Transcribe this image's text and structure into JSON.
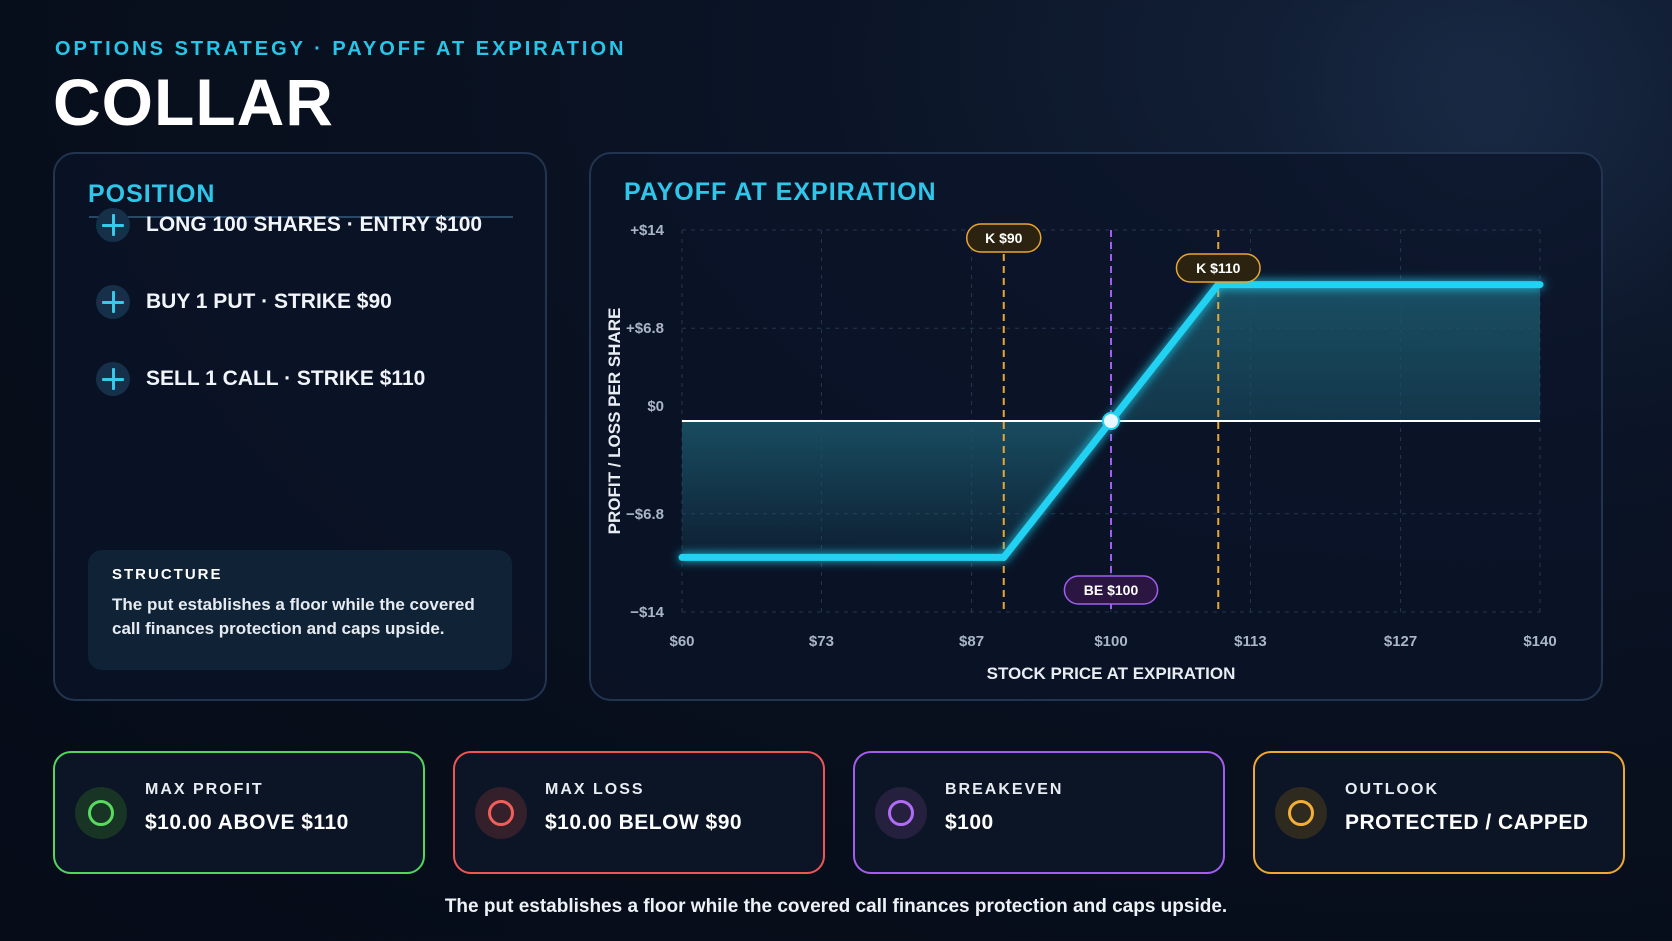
{
  "header": {
    "eyebrow": "OPTIONS STRATEGY · PAYOFF AT EXPIRATION",
    "title": "COLLAR"
  },
  "position": {
    "title": "POSITION",
    "legs": [
      {
        "label": "LONG 100 SHARES · ENTRY $100",
        "icon": "plus-icon"
      },
      {
        "label": "BUY 1 PUT · STRIKE $90",
        "icon": "plus-icon"
      },
      {
        "label": "SELL 1 CALL · STRIKE $110",
        "icon": "plus-icon"
      }
    ],
    "structure_label": "STRUCTURE",
    "structure_text": "The put establishes a floor while the covered call finances protection and caps upside."
  },
  "chart": {
    "title": "PAYOFF AT EXPIRATION"
  },
  "chart_data": {
    "type": "line",
    "title": "PAYOFF AT EXPIRATION",
    "xlabel": "STOCK PRICE AT EXPIRATION",
    "ylabel": "PROFIT / LOSS PER SHARE",
    "xlim": [
      60,
      140
    ],
    "ylim": [
      -14,
      14
    ],
    "x_ticks": [
      60,
      73,
      87,
      100,
      113,
      127,
      140
    ],
    "x_tick_labels": [
      "$60",
      "$73",
      "$87",
      "$100",
      "$113",
      "$127",
      "$140"
    ],
    "y_ticks": [
      14,
      6.8,
      0,
      -6.8,
      -14
    ],
    "y_tick_labels": [
      "+$14",
      "+$6.8",
      "$0",
      "−$6.8",
      "−$14"
    ],
    "series": [
      {
        "x": [
          60,
          90,
          110,
          140
        ],
        "y": [
          -10,
          -10,
          10,
          10
        ]
      }
    ],
    "markers": [
      {
        "x": 90,
        "label": "K $90",
        "color": "#e9a630"
      },
      {
        "x": 110,
        "label": "K $110",
        "color": "#e9a630"
      },
      {
        "x": 100,
        "label": "BE $100",
        "color": "#a15ef0"
      }
    ],
    "grid": true,
    "colors": {
      "line": "#22d2f2",
      "fill": "#1a5266",
      "zero": "#ffffff"
    }
  },
  "stats": [
    {
      "label": "MAX PROFIT",
      "value": "$10.00 ABOVE $110",
      "color": "#52d65c"
    },
    {
      "label": "MAX LOSS",
      "value": "$10.00 BELOW $90",
      "color": "#ef5554"
    },
    {
      "label": "BREAKEVEN",
      "value": "$100",
      "color": "#a35cf0"
    },
    {
      "label": "OUTLOOK",
      "value": "PROTECTED / CAPPED",
      "color": "#f0a830"
    }
  ],
  "footer": "The put establishes a floor while the covered call finances protection and caps upside."
}
